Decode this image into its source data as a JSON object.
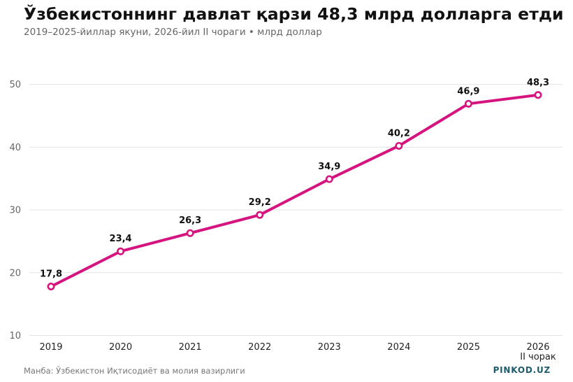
{
  "header": {
    "title": "Ўзбекистоннинг давлат қарзи 48,3 млрд долларга етди",
    "subtitle": "2019–2025-йиллар якуни, 2026-йил II чораги • млрд доллар"
  },
  "footer": {
    "source": "Манба: Ўзбекистон Иқтисодиёт ва молия вазирлиги",
    "brand": "PINKOD.UZ"
  },
  "chart_data": {
    "type": "line",
    "categories": [
      "2019",
      "2020",
      "2021",
      "2022",
      "2023",
      "2024",
      "2025",
      "2026"
    ],
    "category_sublabels": [
      "",
      "",
      "",
      "",
      "",
      "",
      "",
      "II чорак"
    ],
    "values": [
      17.8,
      23.4,
      26.3,
      29.2,
      34.9,
      40.2,
      46.9,
      48.3
    ],
    "data_labels": [
      "17,8",
      "23,4",
      "26,3",
      "29,2",
      "34,9",
      "40,2",
      "46,9",
      "48,3"
    ],
    "yticks": [
      10,
      20,
      30,
      40,
      50
    ],
    "ylim": [
      10,
      50
    ],
    "grid": true,
    "line_color": "#d6147f",
    "marker_fill": "#ffffff"
  }
}
